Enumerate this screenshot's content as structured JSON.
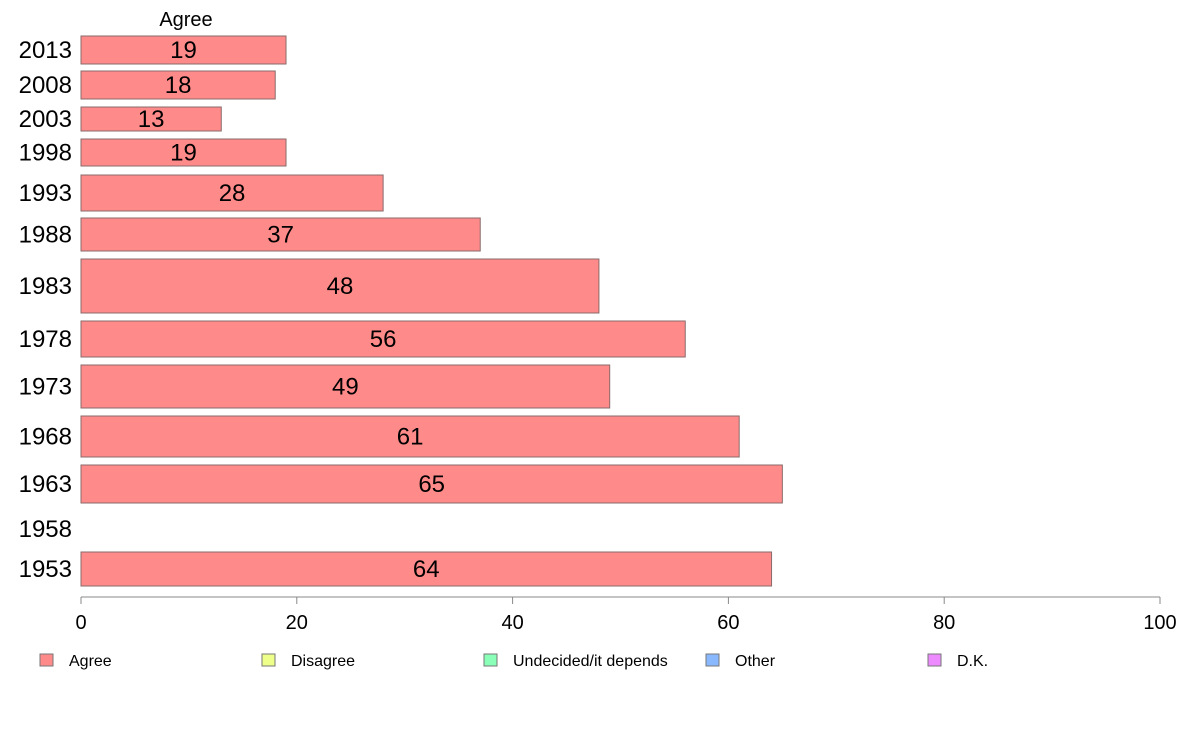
{
  "chart_data": {
    "type": "bar",
    "orientation": "horizontal",
    "title": "Agree",
    "categories": [
      "2013",
      "2008",
      "2003",
      "1998",
      "1993",
      "1988",
      "1983",
      "1978",
      "1973",
      "1968",
      "1963",
      "1958",
      "1953"
    ],
    "series": [
      {
        "name": "Agree",
        "color": "#ff8a8a",
        "values": [
          19,
          18,
          13,
          19,
          28,
          37,
          48,
          56,
          49,
          61,
          65,
          null,
          64
        ],
        "labels": [
          "19",
          "18",
          "13",
          "19",
          "28",
          "37",
          "48",
          "56",
          "49",
          "61",
          "65",
          "",
          "64"
        ]
      }
    ],
    "xlim": [
      0,
      100
    ],
    "xticks": [
      0,
      20,
      40,
      60,
      80,
      100
    ],
    "grid": false,
    "legend": {
      "placement": "bottom",
      "items": [
        {
          "label": "Agree",
          "color": "#ff8a8a"
        },
        {
          "label": "Disagree",
          "color": "#eeff8a"
        },
        {
          "label": "Undecided/it depends",
          "color": "#8affb8"
        },
        {
          "label": "Other",
          "color": "#8ab8ff"
        },
        {
          "label": "D.K.",
          "color": "#ee8aff"
        }
      ]
    }
  }
}
